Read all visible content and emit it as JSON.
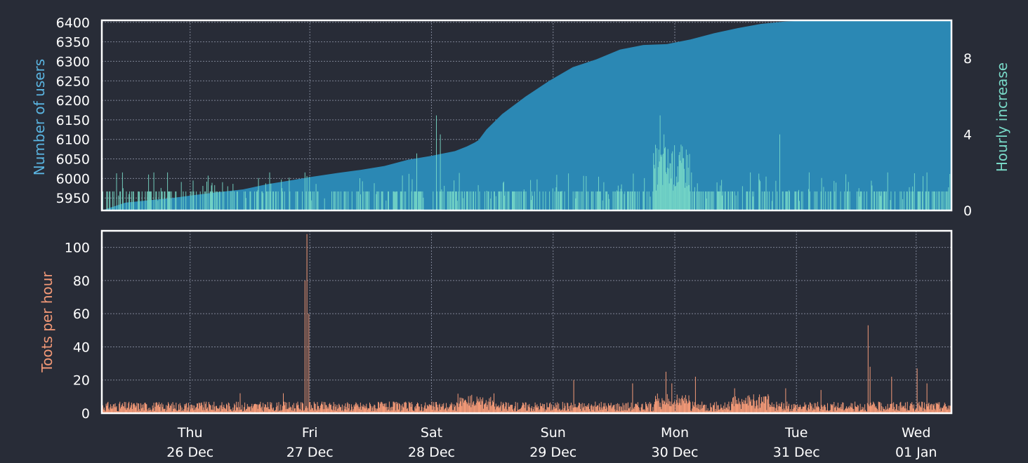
{
  "colors": {
    "background": "#282c37",
    "users": "#2b88b4",
    "users_label": "#5ab4e0",
    "hourly": "#79dac8",
    "toots": "#f29977",
    "frame": "#ffffff"
  },
  "chart_data": [
    {
      "type": "area",
      "name": "users-chart",
      "ylabel": "Number of users",
      "ylabel_right": "Hourly increase",
      "ylim": [
        5918,
        6405
      ],
      "ylim_right": [
        0,
        10
      ],
      "yticks": [
        5950,
        6000,
        6050,
        6100,
        6150,
        6200,
        6250,
        6300,
        6350,
        6400
      ],
      "yticks_right": [
        0,
        4,
        8
      ],
      "grid": true,
      "series": [
        {
          "name": "",
          "type": "area",
          "x": [
            0,
            12,
            24,
            36,
            48,
            60,
            72,
            84,
            96,
            108,
            120,
            132,
            144,
            156,
            168,
            180,
            186,
            190,
            192,
            196,
            204,
            216,
            228,
            240,
            252,
            264,
            276,
            288,
            300,
            312,
            324,
            336,
            348,
            360,
            372,
            384,
            396,
            408,
            420,
            433
          ],
          "values": [
            5918,
            5938,
            5944,
            5950,
            5958,
            5965,
            5972,
            5985,
            5995,
            6005,
            6014,
            6022,
            6032,
            6048,
            6058,
            6070,
            6082,
            6092,
            6098,
            6125,
            6165,
            6210,
            6250,
            6285,
            6305,
            6330,
            6342,
            6344,
            6356,
            6372,
            6385,
            6396,
            6402,
            6405,
            6405,
            6405,
            6405,
            6405,
            6405,
            6405
          ]
        },
        {
          "name": "",
          "type": "bar-hourly",
          "x_start": 0,
          "x_end": 433,
          "baseline_max": 1,
          "spikes": [
            [
              10,
              2
            ],
            [
              26,
              2
            ],
            [
              33,
              2
            ],
            [
              40,
              1.5
            ],
            [
              85,
              2
            ],
            [
              103,
              2
            ],
            [
              160,
              3
            ],
            [
              170,
              5
            ],
            [
              172,
              4
            ],
            [
              284,
              5
            ],
            [
              286,
              4
            ],
            [
              290,
              3
            ],
            [
              295,
              2.5
            ],
            [
              300,
              2
            ],
            [
              330,
              2
            ],
            [
              345,
              4
            ],
            [
              360,
              2
            ],
            [
              380,
              1.5
            ],
            [
              400,
              2
            ],
            [
              420,
              2
            ]
          ]
        }
      ]
    },
    {
      "type": "bar",
      "name": "toots-chart",
      "ylabel": "Toots per hour",
      "ylim": [
        0,
        110
      ],
      "yticks": [
        0,
        20,
        40,
        60,
        80,
        100
      ],
      "grid": true,
      "x_start": 0,
      "x_end": 433,
      "baseline_max": 6,
      "spikes": [
        [
          104,
          108
        ],
        [
          103,
          80
        ],
        [
          105,
          60
        ],
        [
          70,
          12
        ],
        [
          92,
          12
        ],
        [
          240,
          20
        ],
        [
          270,
          18
        ],
        [
          287,
          25
        ],
        [
          290,
          18
        ],
        [
          302,
          22
        ],
        [
          322,
          15
        ],
        [
          348,
          15
        ],
        [
          366,
          14
        ],
        [
          390,
          53
        ],
        [
          391,
          28
        ],
        [
          402,
          22
        ],
        [
          415,
          27
        ],
        [
          420,
          18
        ]
      ]
    }
  ],
  "xaxis": {
    "labels": [
      {
        "day": "Thu",
        "date": "26 Dec"
      },
      {
        "day": "Fri",
        "date": "27 Dec"
      },
      {
        "day": "Sat",
        "date": "28 Dec"
      },
      {
        "day": "Sun",
        "date": "29 Dec"
      },
      {
        "day": "Mon",
        "date": "30 Dec"
      },
      {
        "day": "Tue",
        "date": "31 Dec"
      },
      {
        "day": "Wed",
        "date": "01 Jan"
      }
    ],
    "label_hours": [
      45,
      106,
      168,
      230,
      292,
      354,
      415
    ]
  }
}
